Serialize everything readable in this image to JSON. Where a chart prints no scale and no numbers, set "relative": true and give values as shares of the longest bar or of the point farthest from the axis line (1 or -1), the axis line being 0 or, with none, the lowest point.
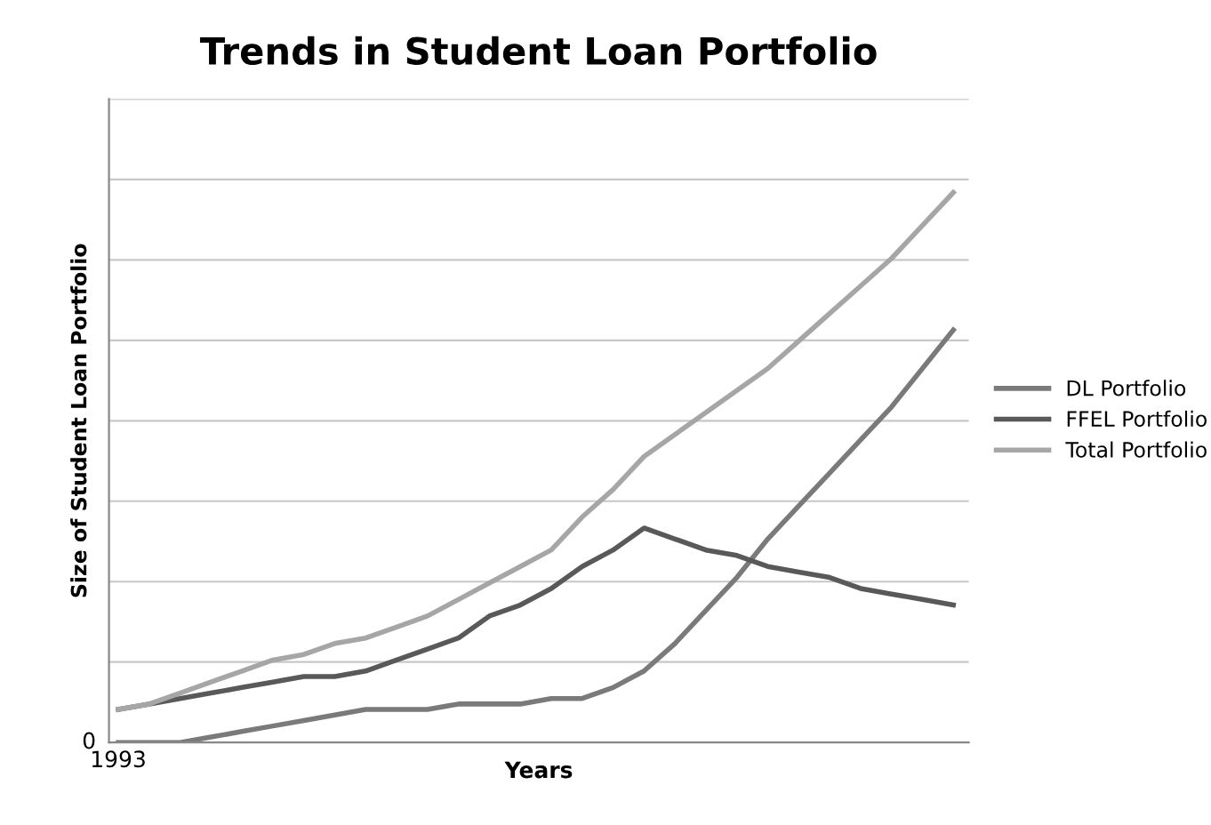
{
  "chart_data": {
    "type": "line",
    "title": "Trends in Student Loan Portfolio",
    "xlabel": "Years",
    "ylabel": "Size of Student Loan Portfolio",
    "categories": [
      null,
      null,
      null,
      null,
      null,
      null,
      null,
      null,
      null,
      null,
      null,
      null,
      null,
      null,
      null,
      null,
      null,
      null,
      null,
      null,
      null,
      null,
      null,
      null,
      null,
      null,
      null,
      null
    ],
    "relative": true,
    "annotations": [
      "0",
      "1993"
    ],
    "grid": "y",
    "legend": "right",
    "marker": "none",
    "line_style": "solid",
    "series": [
      {
        "name": "DL Portfolio",
        "color": "#7a7a7a",
        "values": [
          0,
          0,
          0,
          0.01,
          0.02,
          0.03,
          0.04,
          0.05,
          0.06,
          0.06,
          0.06,
          0.07,
          0.07,
          0.07,
          0.08,
          0.08,
          0.1,
          0.13,
          0.18,
          0.24,
          0.3,
          0.37,
          0.43,
          0.49,
          0.55,
          0.61,
          0.68,
          0.75
        ]
      },
      {
        "name": "FFEL Portfolio",
        "color": "#595959",
        "values": [
          0.06,
          0.07,
          0.08,
          0.09,
          0.1,
          0.11,
          0.12,
          0.12,
          0.13,
          0.15,
          0.17,
          0.19,
          0.23,
          0.25,
          0.28,
          0.32,
          0.35,
          0.39,
          0.37,
          0.35,
          0.34,
          0.32,
          0.31,
          0.3,
          0.28,
          0.27,
          0.26,
          0.25
        ]
      },
      {
        "name": "Total Portfolio",
        "color": "#a6a6a6",
        "values": [
          0.06,
          0.07,
          0.09,
          0.11,
          0.13,
          0.15,
          0.16,
          0.18,
          0.19,
          0.21,
          0.23,
          0.26,
          0.29,
          0.32,
          0.35,
          0.41,
          0.46,
          0.52,
          0.56,
          0.6,
          0.64,
          0.68,
          0.73,
          0.78,
          0.83,
          0.88,
          0.94,
          1
        ]
      }
    ]
  }
}
